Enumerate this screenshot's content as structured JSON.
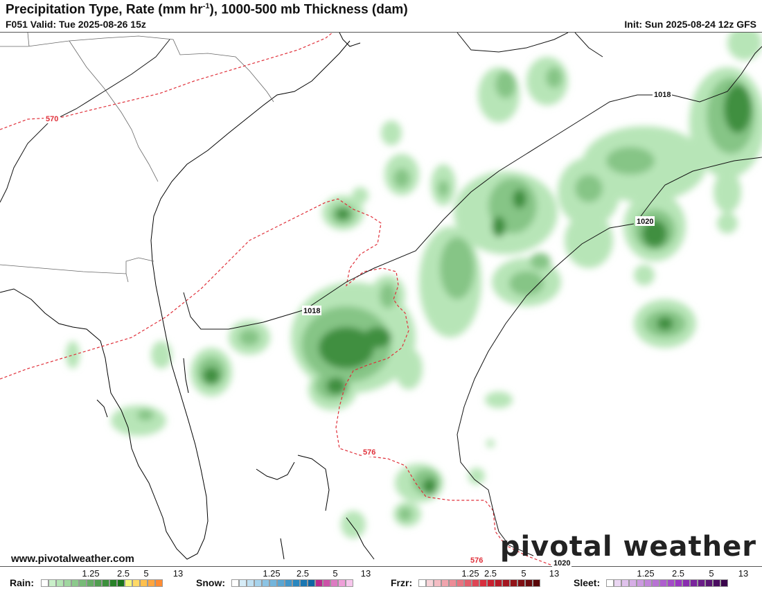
{
  "header": {
    "title": "Precipitation Type, Rate (mm hr",
    "title_sup": "-1",
    "title_rest": "), 1000-500 mb Thickness (dam)",
    "valid": "F051 Valid: Tue 2025-08-26 15z",
    "init": "Init: Sun 2025-08-24 12z GFS"
  },
  "map": {
    "isobar_labels": [
      "1018",
      "1018",
      "1020",
      "1020"
    ],
    "thickness_labels": [
      "570",
      "576",
      "576"
    ]
  },
  "footer": {
    "site": "www.pivotalweather.com",
    "brand": "pivotal weather"
  },
  "legend": [
    {
      "name": "Rain:",
      "ticks": [
        "1.25",
        "2.5",
        "5",
        "13"
      ],
      "colors": [
        "#ffffff",
        "#c9efc9",
        "#b3e4b3",
        "#9fd69f",
        "#8cc98c",
        "#78bb78",
        "#64ac64",
        "#509e50",
        "#3c903c",
        "#288128",
        "#1a731a",
        "#f5f57a",
        "#ffd966",
        "#ffc04d",
        "#ffa640",
        "#ff8c33"
      ]
    },
    {
      "name": "Snow:",
      "ticks": [
        "1.25",
        "2.5",
        "5",
        "13"
      ],
      "colors": [
        "#ffffff",
        "#d6ecf7",
        "#bfe0f2",
        "#a6d3ec",
        "#8cc4e4",
        "#73b5dc",
        "#5aa6d3",
        "#4196ca",
        "#2987bf",
        "#1a77b2",
        "#0f66a3",
        "#bb2a8f",
        "#cc52a8",
        "#dd7bc2",
        "#ee9fd8",
        "#f7c6ec"
      ]
    },
    {
      "name": "Frzr:",
      "ticks": [
        "1.25",
        "2.5",
        "5",
        "13"
      ],
      "colors": [
        "#ffffff",
        "#f8d3d8",
        "#f4bcc3",
        "#f0a4ad",
        "#ec8c97",
        "#e87481",
        "#e35d6a",
        "#df4554",
        "#d72e3e",
        "#c92030",
        "#b81a28",
        "#a51620",
        "#921218",
        "#7f0e12",
        "#6c0a0c",
        "#590608"
      ]
    },
    {
      "name": "Sleet:",
      "ticks": [
        "1.25",
        "2.5",
        "5",
        "13"
      ],
      "colors": [
        "#ffffff",
        "#ead6f2",
        "#e0c2ec",
        "#d6aee6",
        "#cc9ae0",
        "#c286da",
        "#b872d4",
        "#ae5ece",
        "#a44ac8",
        "#9a36c2",
        "#8a2cb0",
        "#7a249c",
        "#6a1c88",
        "#5a1474",
        "#4a0c60",
        "#3a044c"
      ]
    }
  ]
}
